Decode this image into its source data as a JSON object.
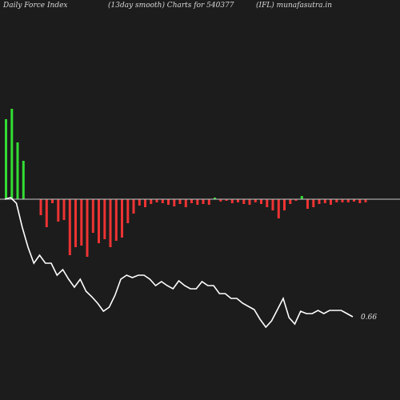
{
  "header": {
    "left": "Daily Force  Index",
    "middle": "(13day smooth) Charts for 540377",
    "right": "(IFL) munafasutra.in"
  },
  "colors": {
    "background": "#1c1c1c",
    "positive_bar": "#33dd33",
    "negative_bar": "#ee3333",
    "baseline": "#c8c8c8",
    "line": "#ffffff"
  },
  "chart_data": {
    "type": "bar",
    "title": "",
    "xlabel": "",
    "ylabel": "",
    "series": [
      {
        "type": "bar",
        "values": [
          100,
          113,
          71,
          48,
          0,
          0,
          -20,
          -35,
          -5,
          -28,
          -26,
          -70,
          -60,
          -58,
          -72,
          -42,
          -55,
          -50,
          -60,
          -52,
          -48,
          -30,
          -18,
          -8,
          -10,
          -6,
          -4,
          -5,
          -7,
          -9,
          -6,
          -10,
          -5,
          -7,
          -6,
          -7,
          2,
          -3,
          -2,
          -5,
          -4,
          -6,
          -7,
          -4,
          -6,
          -10,
          -14,
          -24,
          -14,
          -6,
          -2,
          4,
          -12,
          -10,
          -6,
          -5,
          -7,
          -4,
          -4,
          -4,
          -3,
          -5,
          -4
        ]
      },
      {
        "type": "line",
        "label": "0.66",
        "values": [
          0,
          2,
          -5,
          -35,
          -60,
          -80,
          -70,
          -80,
          -80,
          -95,
          -88,
          -100,
          -110,
          -100,
          -115,
          -122,
          -130,
          -140,
          -135,
          -120,
          -100,
          -95,
          -98,
          -95,
          -95,
          -100,
          -108,
          -103,
          -108,
          -112,
          -102,
          -108,
          -112,
          -112,
          -103,
          -108,
          -108,
          -118,
          -118,
          -124,
          -124,
          -130,
          -134,
          -138,
          -150,
          -160,
          -152,
          -138,
          -124,
          -148,
          -156,
          -140,
          -143,
          -143,
          -139,
          -143,
          -139,
          -139,
          -139,
          -143,
          -147
        ]
      }
    ]
  }
}
